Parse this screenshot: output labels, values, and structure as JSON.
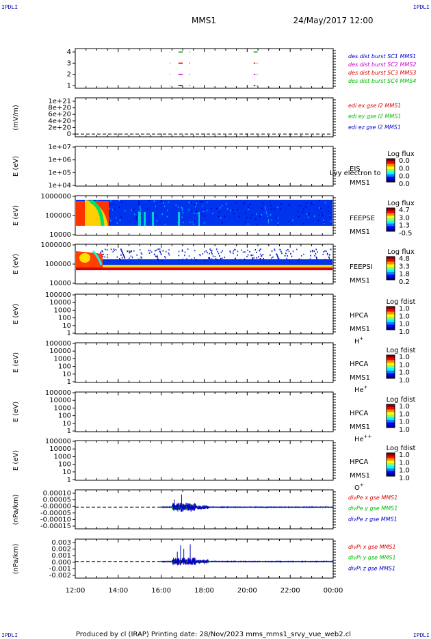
{
  "corner_labels": {
    "tl": "IPDLI",
    "tr": "IPDLI",
    "bl": "IPDLI",
    "br": "IPDLI"
  },
  "header": {
    "spacecraft": "MMS1",
    "datetime": "24/May/2017 12:00"
  },
  "footer": "Produced by cl (IRAP)    Printing date: 28/Nov/2023    mms_mms1_srvy_vue_web2.cl",
  "colors": {
    "black": "#000000",
    "red": "#dd0000",
    "green": "#00bb00",
    "blue": "#0000cc",
    "magenta": "#cc00cc"
  },
  "chart_data": [
    {
      "id": "burst",
      "type": "scatter",
      "yticks": [
        "1",
        "2",
        "3",
        "4"
      ],
      "legend": [
        {
          "label": "des dist burst SC1 MMS1",
          "color": "#0000cc"
        },
        {
          "label": "des dist burst SC2 MMS2",
          "color": "#cc00cc"
        },
        {
          "label": "des dist burst SC3 MMS3",
          "color": "#dd0000"
        },
        {
          "label": "des dist burst SC4 MMS4",
          "color": "#00bb00"
        }
      ],
      "series": [
        {
          "sc": 1,
          "color": "#0000cc",
          "intervals": [
            [
              16.4,
              16.42
            ],
            [
              16.8,
              17.0
            ],
            [
              17.3,
              17.33
            ],
            [
              20.3,
              20.38
            ],
            [
              20.45,
              20.48
            ]
          ]
        },
        {
          "sc": 2,
          "color": "#cc00cc",
          "intervals": [
            [
              16.4,
              16.42
            ],
            [
              16.8,
              17.0
            ],
            [
              17.3,
              17.33
            ],
            [
              20.3,
              20.38
            ],
            [
              20.45,
              20.48
            ]
          ]
        },
        {
          "sc": 3,
          "color": "#dd0000",
          "intervals": [
            [
              16.4,
              16.42
            ],
            [
              16.8,
              17.0
            ],
            [
              17.3,
              17.33
            ],
            [
              20.3,
              20.38
            ],
            [
              20.45,
              20.48
            ]
          ]
        },
        {
          "sc": 4,
          "color": "#00bb00",
          "intervals": [
            [
              16.4,
              16.42
            ],
            [
              16.8,
              17.0
            ],
            [
              17.3,
              17.33
            ],
            [
              20.3,
              20.48
            ]
          ]
        }
      ]
    },
    {
      "id": "edi",
      "type": "line",
      "ylabel": "(mV/m)",
      "yticks": [
        "0",
        "2e+20",
        "4e+20",
        "6e+20",
        "8e+20",
        "1e+21"
      ],
      "legend": [
        {
          "label": "edi ex gse l2 MMS1",
          "color": "#dd0000"
        },
        {
          "label": "edi ey gse l2 MMS1",
          "color": "#00bb00"
        },
        {
          "label": "edi ez gse l2 MMS1",
          "color": "#0000cc"
        }
      ],
      "zero_line": true
    },
    {
      "id": "eis",
      "type": "heatmap",
      "ylabel": "E (eV)",
      "yticks": [
        "1e+04",
        "1e+05",
        "1e+06",
        "1e+07"
      ],
      "right_labels": [
        "EIS",
        "MMS1"
      ],
      "overlay_label": "Lvy electron to",
      "colorbar": {
        "title": "Log flux",
        "ticks": [
          "0.0",
          "0.0",
          "0.0",
          "0.0"
        ]
      }
    },
    {
      "id": "feepse",
      "type": "heatmap",
      "ylabel": "E (eV)",
      "yticks": [
        "10000",
        "100000",
        "1000000"
      ],
      "right_labels": [
        "FEEPSE",
        "MMS1"
      ],
      "colorbar": {
        "title": "Log flux",
        "ticks": [
          "4.7",
          "3.0",
          "1.3",
          "-0.5"
        ]
      }
    },
    {
      "id": "feepsi",
      "type": "heatmap",
      "ylabel": "E (eV)",
      "yticks": [
        "10000",
        "100000",
        "1000000"
      ],
      "right_labels": [
        "FEEPSI",
        "MMS1"
      ],
      "colorbar": {
        "title": "Log flux",
        "ticks": [
          "4.8",
          "3.3",
          "1.8",
          "0.2"
        ]
      }
    },
    {
      "id": "hpca_h",
      "type": "heatmap",
      "ylabel": "E (eV)",
      "yticks": [
        "1",
        "10",
        "100",
        "1000",
        "10000",
        "100000"
      ],
      "right_labels": [
        "HPCA",
        "MMS1",
        "H+"
      ],
      "colorbar": {
        "title": "Log fdist",
        "ticks": [
          "1.0",
          "1.0",
          "1.0",
          "1.0"
        ]
      }
    },
    {
      "id": "hpca_he",
      "type": "heatmap",
      "ylabel": "E (eV)",
      "yticks": [
        "1",
        "10",
        "100",
        "1000",
        "10000",
        "100000"
      ],
      "right_labels": [
        "HPCA",
        "MMS1",
        "He+"
      ],
      "colorbar": {
        "title": "Log fdist",
        "ticks": [
          "1.0",
          "1.0",
          "1.0",
          "1.0"
        ]
      }
    },
    {
      "id": "hpca_he2",
      "type": "heatmap",
      "ylabel": "E (eV)",
      "yticks": [
        "1",
        "10",
        "100",
        "1000",
        "10000",
        "100000"
      ],
      "right_labels": [
        "HPCA",
        "MMS1",
        "He++"
      ],
      "colorbar": {
        "title": "Log fdist",
        "ticks": [
          "1.0",
          "1.0",
          "1.0",
          "1.0"
        ]
      }
    },
    {
      "id": "hpca_o",
      "type": "heatmap",
      "ylabel": "E (eV)",
      "yticks": [
        "1",
        "10",
        "100",
        "1000",
        "10000",
        "100000"
      ],
      "right_labels": [
        "HPCA",
        "MMS1",
        "O+"
      ],
      "colorbar": {
        "title": "Log fdist",
        "ticks": [
          "1.0",
          "1.0",
          "1.0",
          "1.0"
        ]
      }
    },
    {
      "id": "divpe",
      "type": "line",
      "ylabel": "(nPa/km)",
      "yticks": [
        "-0.00015",
        "-0.00010",
        "-0.00005",
        "-0.00000",
        "0.00005",
        "0.00010"
      ],
      "ylim": [
        -0.00015,
        0.00011
      ],
      "legend": [
        {
          "label": "divPe x gse MMS1",
          "color": "#dd0000"
        },
        {
          "label": "divPe y gse MMS1",
          "color": "#00bb00"
        },
        {
          "label": "divPe z gse MMS1",
          "color": "#0000cc"
        }
      ],
      "data_start_hour": 16.0,
      "zero_line": true
    },
    {
      "id": "divpi",
      "type": "line",
      "ylabel": "(nPa/km)",
      "yticks": [
        "-0.002",
        "-0.001",
        "0.000",
        "0.001",
        "0.002",
        "0.003"
      ],
      "ylim": [
        -0.0024,
        0.0033
      ],
      "legend": [
        {
          "label": "divPi x gse MMS1",
          "color": "#dd0000"
        },
        {
          "label": "divPi y gse MMS1",
          "color": "#00bb00"
        },
        {
          "label": "divPi z gse MMS1",
          "color": "#0000cc"
        }
      ],
      "data_start_hour": 16.0,
      "zero_line": true
    }
  ],
  "xaxis": {
    "start_hour": 12,
    "end_hour": 24,
    "ticks": [
      "12:00",
      "14:00",
      "16:00",
      "18:00",
      "20:00",
      "22:00",
      "00:00"
    ]
  }
}
